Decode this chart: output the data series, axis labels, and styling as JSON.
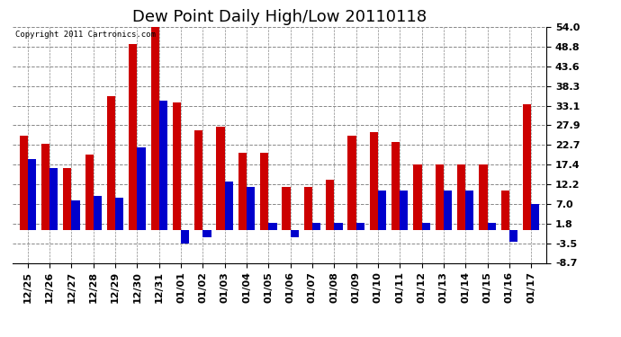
{
  "title": "Dew Point Daily High/Low 20110118",
  "copyright": "Copyright 2011 Cartronics.com",
  "dates": [
    "12/25",
    "12/26",
    "12/27",
    "12/28",
    "12/29",
    "12/30",
    "12/31",
    "01/01",
    "01/02",
    "01/03",
    "01/04",
    "01/05",
    "01/06",
    "01/07",
    "01/08",
    "01/09",
    "01/10",
    "01/11",
    "01/12",
    "01/13",
    "01/14",
    "01/15",
    "01/16",
    "01/17"
  ],
  "highs": [
    25.0,
    23.0,
    16.5,
    20.0,
    35.5,
    49.5,
    54.0,
    34.0,
    26.5,
    27.5,
    20.5,
    20.5,
    11.5,
    11.5,
    13.5,
    25.0,
    26.0,
    23.5,
    17.5,
    17.5,
    17.5,
    17.5,
    10.5,
    33.5
  ],
  "lows": [
    19.0,
    16.5,
    8.0,
    9.0,
    8.5,
    22.0,
    34.5,
    -3.5,
    -2.0,
    13.0,
    11.5,
    2.0,
    -2.0,
    2.0,
    2.0,
    2.0,
    10.5,
    10.5,
    2.0,
    10.5,
    10.5,
    2.0,
    -3.0,
    7.0
  ],
  "high_color": "#cc0000",
  "low_color": "#0000cc",
  "ylim_min": -8.7,
  "ylim_max": 54.0,
  "yticks": [
    -8.7,
    -3.5,
    1.8,
    7.0,
    12.2,
    17.4,
    22.7,
    27.9,
    33.1,
    38.3,
    43.6,
    48.8,
    54.0
  ],
  "background_color": "#ffffff",
  "grid_color": "#888888",
  "bar_width": 0.38,
  "title_fontsize": 13,
  "tick_fontsize": 8,
  "figwidth": 6.9,
  "figheight": 3.75,
  "dpi": 100
}
